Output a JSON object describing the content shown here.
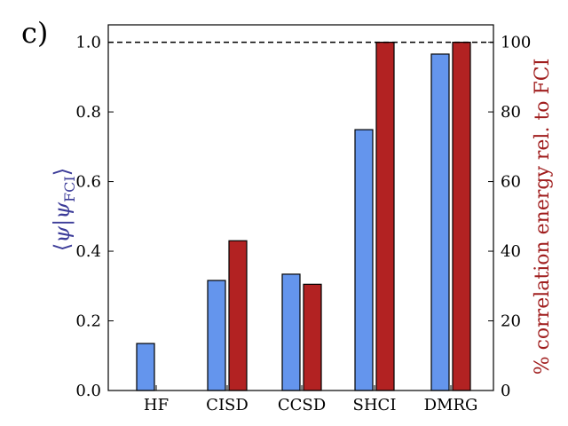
{
  "panel_label": "c)",
  "colors": {
    "left_series": "#6495ED",
    "right_series": "#B22222",
    "left_label": "#3b3b98",
    "right_label": "#a01e1e",
    "reference_line": "#000000"
  },
  "chart_data": {
    "type": "bar",
    "categories": [
      "HF",
      "CISD",
      "CCSD",
      "SHCI",
      "DMRG"
    ],
    "series": [
      {
        "axis": "left",
        "values": [
          0.135,
          0.316,
          0.334,
          0.749,
          0.966
        ]
      },
      {
        "axis": "right",
        "values": [
          0,
          43,
          30.5,
          100,
          100
        ]
      }
    ],
    "ylim_left": [
      0,
      1.05
    ],
    "ylim_right": [
      0,
      105
    ],
    "yticks_left": [
      0.0,
      0.2,
      0.4,
      0.6,
      0.8,
      1.0
    ],
    "yticks_right": [
      0,
      20,
      40,
      60,
      80,
      100
    ],
    "ytick_labels_left": [
      "0.0",
      "0.2",
      "0.4",
      "0.6",
      "0.8",
      "1.0"
    ],
    "ytick_labels_right": [
      "0",
      "20",
      "40",
      "60",
      "80",
      "100"
    ],
    "reference_line": {
      "axis": "left",
      "value": 1.0,
      "style": "dashed"
    },
    "ylabel_left": {
      "bra_open": "⟨",
      "psi": "ψ",
      "bar": "|",
      "psi2": "ψ",
      "sub": "FCI",
      "ket_close": "⟩"
    },
    "ylabel_right": "% correlation energy rel. to FCI",
    "grid": false
  }
}
